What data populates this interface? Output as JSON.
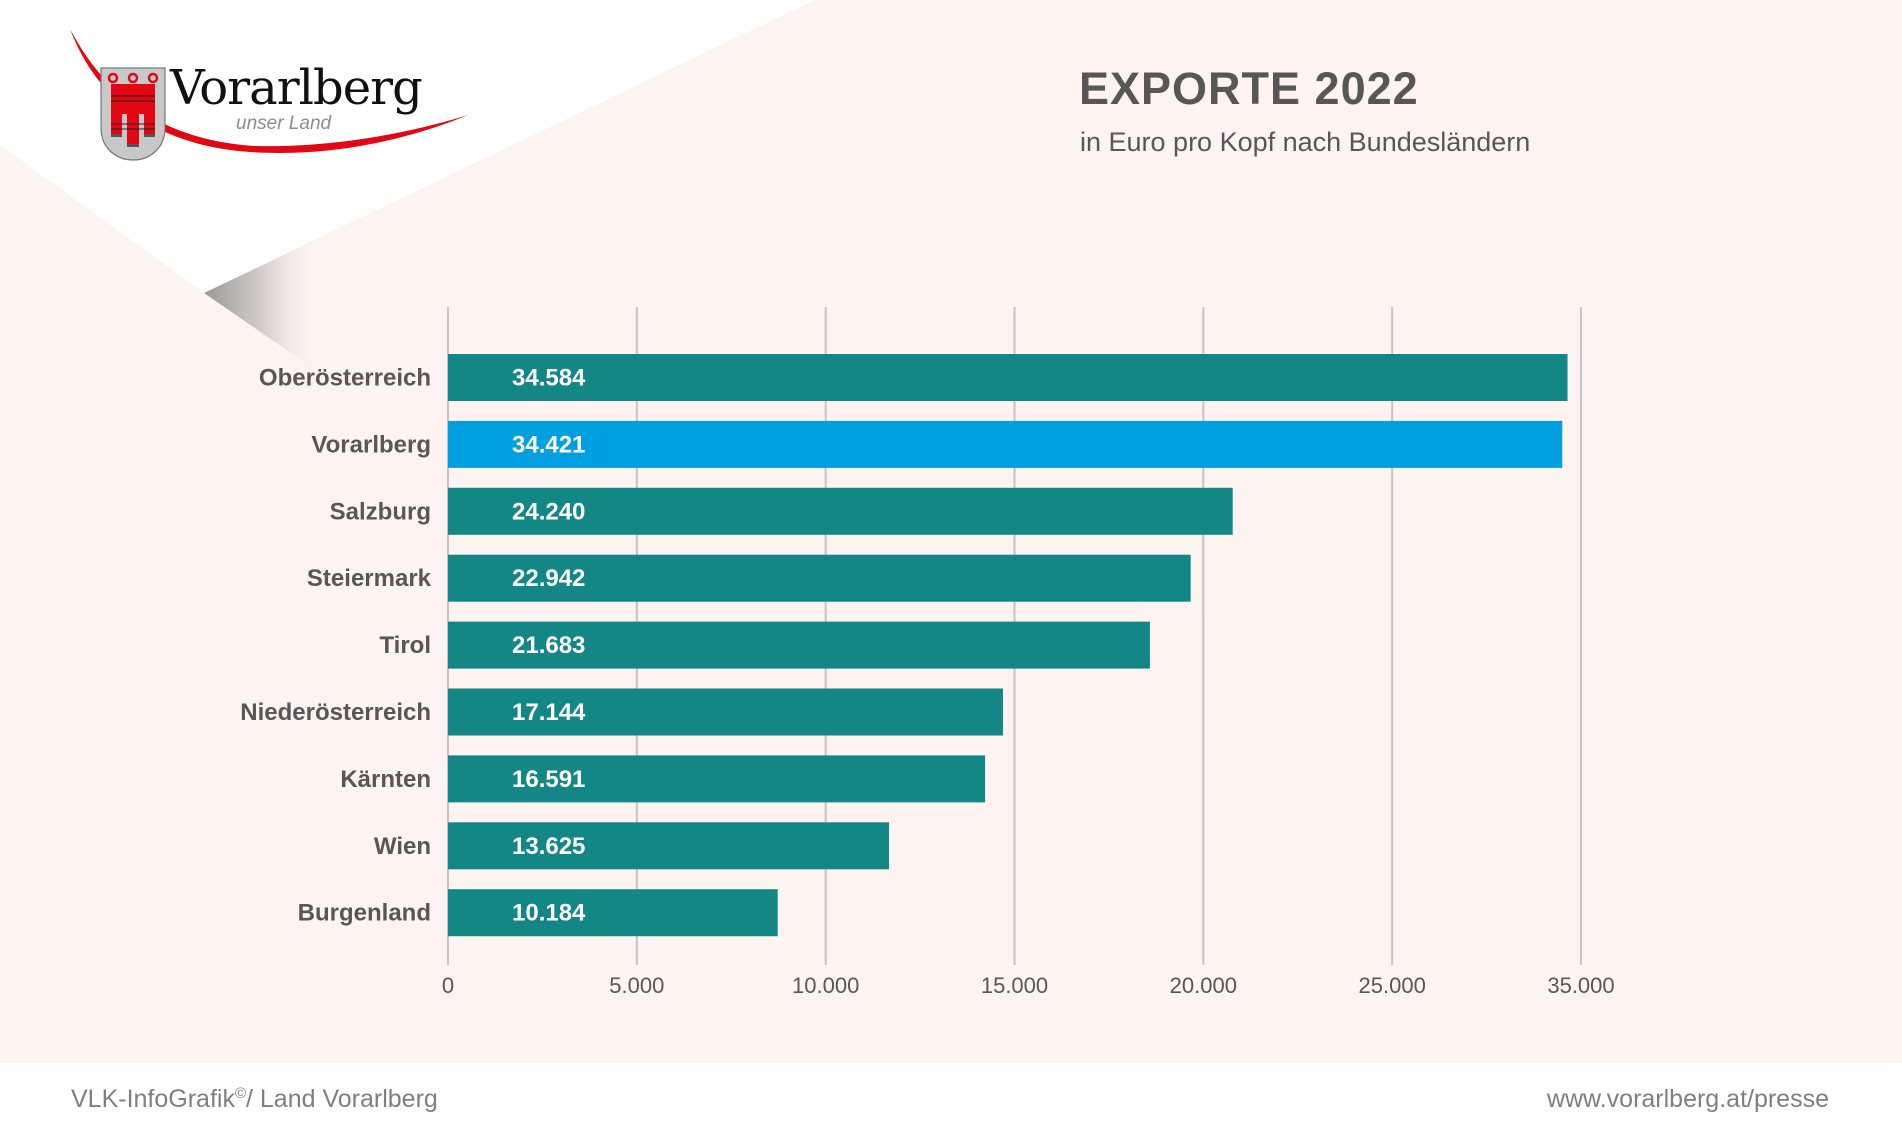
{
  "logo": {
    "wordmark": "Vorarlberg",
    "tagline": "unser Land",
    "colors": {
      "red": "#e30613",
      "shield_gray": "#c8c8c8"
    }
  },
  "header": {
    "title": "EXPORTE 2022",
    "subtitle": "in Euro pro Kopf nach Bundesländern"
  },
  "footer": {
    "credit": "VLK-InfoGrafik",
    "credit_mark": "©",
    "credit_suffix": "/ Land Vorarlberg",
    "url": "www.vorarlberg.at/presse"
  },
  "colors": {
    "background": "#fdf3f1",
    "bar_default": "#128785",
    "bar_highlight": "#009fe0",
    "gridline": "#cbc2c5",
    "text": "#575757"
  },
  "chart_data": {
    "type": "bar",
    "orientation": "horizontal",
    "title": "EXPORTE 2022",
    "subtitle": "in Euro pro Kopf nach Bundesländern",
    "xlabel": "",
    "ylabel": "",
    "categories": [
      "Oberösterreich",
      "Vorarlberg",
      "Salzburg",
      "Steiermark",
      "Tirol",
      "Niederösterreich",
      "Kärnten",
      "Wien",
      "Burgenland"
    ],
    "values": [
      34584,
      34421,
      24240,
      22942,
      21683,
      17144,
      16591,
      13625,
      10184
    ],
    "value_labels": [
      "34.584",
      "34.421",
      "24.240",
      "22.942",
      "21.683",
      "17.144",
      "16.591",
      "13.625",
      "10.184"
    ],
    "highlight": "Vorarlberg",
    "xlim": [
      0,
      35000
    ],
    "tick_labels": [
      "0",
      "5.000",
      "10.000",
      "15.000",
      "20.000",
      "25.000",
      "35.000"
    ],
    "grid": true,
    "legend": "none"
  }
}
